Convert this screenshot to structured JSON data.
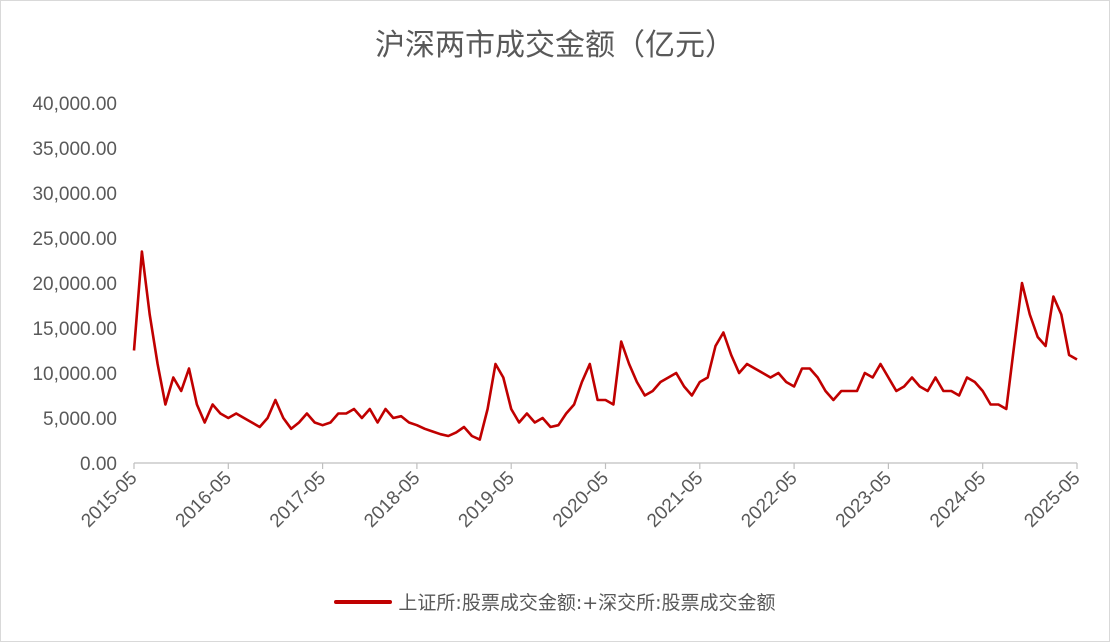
{
  "chart_data": {
    "type": "line",
    "title": "沪深两市成交金额（亿元）",
    "xlabel": "",
    "ylabel": "",
    "ylim": [
      0,
      40000
    ],
    "yticks": [
      "0.00",
      "5,000.00",
      "10,000.00",
      "15,000.00",
      "20,000.00",
      "25,000.00",
      "30,000.00",
      "35,000.00",
      "40,000.00"
    ],
    "xticks": [
      "2015-05",
      "2016-05",
      "2017-05",
      "2018-05",
      "2019-05",
      "2020-05",
      "2021-05",
      "2022-05",
      "2023-05",
      "2024-05",
      "2025-05"
    ],
    "xlim": [
      "2015-05",
      "2025-05"
    ],
    "legend_position": "bottom",
    "grid": false,
    "color": "#c00000",
    "series": [
      {
        "name": "上证所:股票成交金额:+深交所:股票成交金额",
        "x": [
          "2015-05",
          "2015-06",
          "2015-07",
          "2015-08",
          "2015-09",
          "2015-10",
          "2015-11",
          "2015-12",
          "2016-01",
          "2016-02",
          "2016-03",
          "2016-04",
          "2016-05",
          "2016-06",
          "2016-07",
          "2016-08",
          "2016-09",
          "2016-10",
          "2016-11",
          "2016-12",
          "2017-01",
          "2017-02",
          "2017-03",
          "2017-04",
          "2017-05",
          "2017-06",
          "2017-07",
          "2017-08",
          "2017-09",
          "2017-10",
          "2017-11",
          "2017-12",
          "2018-01",
          "2018-02",
          "2018-03",
          "2018-04",
          "2018-05",
          "2018-06",
          "2018-07",
          "2018-08",
          "2018-09",
          "2018-10",
          "2018-11",
          "2018-12",
          "2019-01",
          "2019-02",
          "2019-03",
          "2019-04",
          "2019-05",
          "2019-06",
          "2019-07",
          "2019-08",
          "2019-09",
          "2019-10",
          "2019-11",
          "2019-12",
          "2020-01",
          "2020-02",
          "2020-03",
          "2020-04",
          "2020-05",
          "2020-06",
          "2020-07",
          "2020-08",
          "2020-09",
          "2020-10",
          "2020-11",
          "2020-12",
          "2021-01",
          "2021-02",
          "2021-03",
          "2021-04",
          "2021-05",
          "2021-06",
          "2021-07",
          "2021-08",
          "2021-09",
          "2021-10",
          "2021-11",
          "2021-12",
          "2022-01",
          "2022-02",
          "2022-03",
          "2022-04",
          "2022-05",
          "2022-06",
          "2022-07",
          "2022-08",
          "2022-09",
          "2022-10",
          "2022-11",
          "2022-12",
          "2023-01",
          "2023-02",
          "2023-03",
          "2023-04",
          "2023-05",
          "2023-06",
          "2023-07",
          "2023-08",
          "2023-09",
          "2023-10",
          "2023-11",
          "2023-12",
          "2024-01",
          "2024-02",
          "2024-03",
          "2024-04",
          "2024-05",
          "2024-06",
          "2024-07",
          "2024-08",
          "2024-09",
          "2024-10",
          "2024-11",
          "2024-12",
          "2025-01",
          "2025-02",
          "2025-03",
          "2025-04",
          "2025-05"
        ],
        "values": [
          12500,
          23500,
          16500,
          11000,
          6500,
          9500,
          8000,
          10500,
          6500,
          4500,
          6500,
          5500,
          5000,
          5500,
          5000,
          4500,
          4000,
          5000,
          7000,
          5000,
          3800,
          4500,
          5500,
          4500,
          4200,
          4500,
          5500,
          5500,
          6000,
          5000,
          6000,
          4500,
          6000,
          5000,
          5200,
          4500,
          4200,
          3800,
          3500,
          3200,
          3000,
          3400,
          4000,
          3000,
          2600,
          6000,
          11000,
          9500,
          6000,
          4500,
          5500,
          4500,
          5000,
          4000,
          4200,
          5500,
          6500,
          9000,
          11000,
          7000,
          7000,
          6500,
          13500,
          11000,
          9000,
          7500,
          8000,
          9000,
          9500,
          10000,
          8500,
          7500,
          9000,
          9500,
          13000,
          14500,
          12000,
          10000,
          11000,
          10500,
          10000,
          9500,
          10000,
          9000,
          8500,
          10500,
          10500,
          9500,
          8000,
          7000,
          8000,
          8000,
          8000,
          10000,
          9500,
          11000,
          9500,
          8000,
          8500,
          9500,
          8500,
          8000,
          9500,
          8000,
          8000,
          7500,
          9500,
          9000,
          8000,
          6500,
          6500,
          6000,
          13000,
          20000,
          16500,
          14000,
          13000,
          18500,
          16500,
          12000,
          11500
        ]
      }
    ]
  }
}
